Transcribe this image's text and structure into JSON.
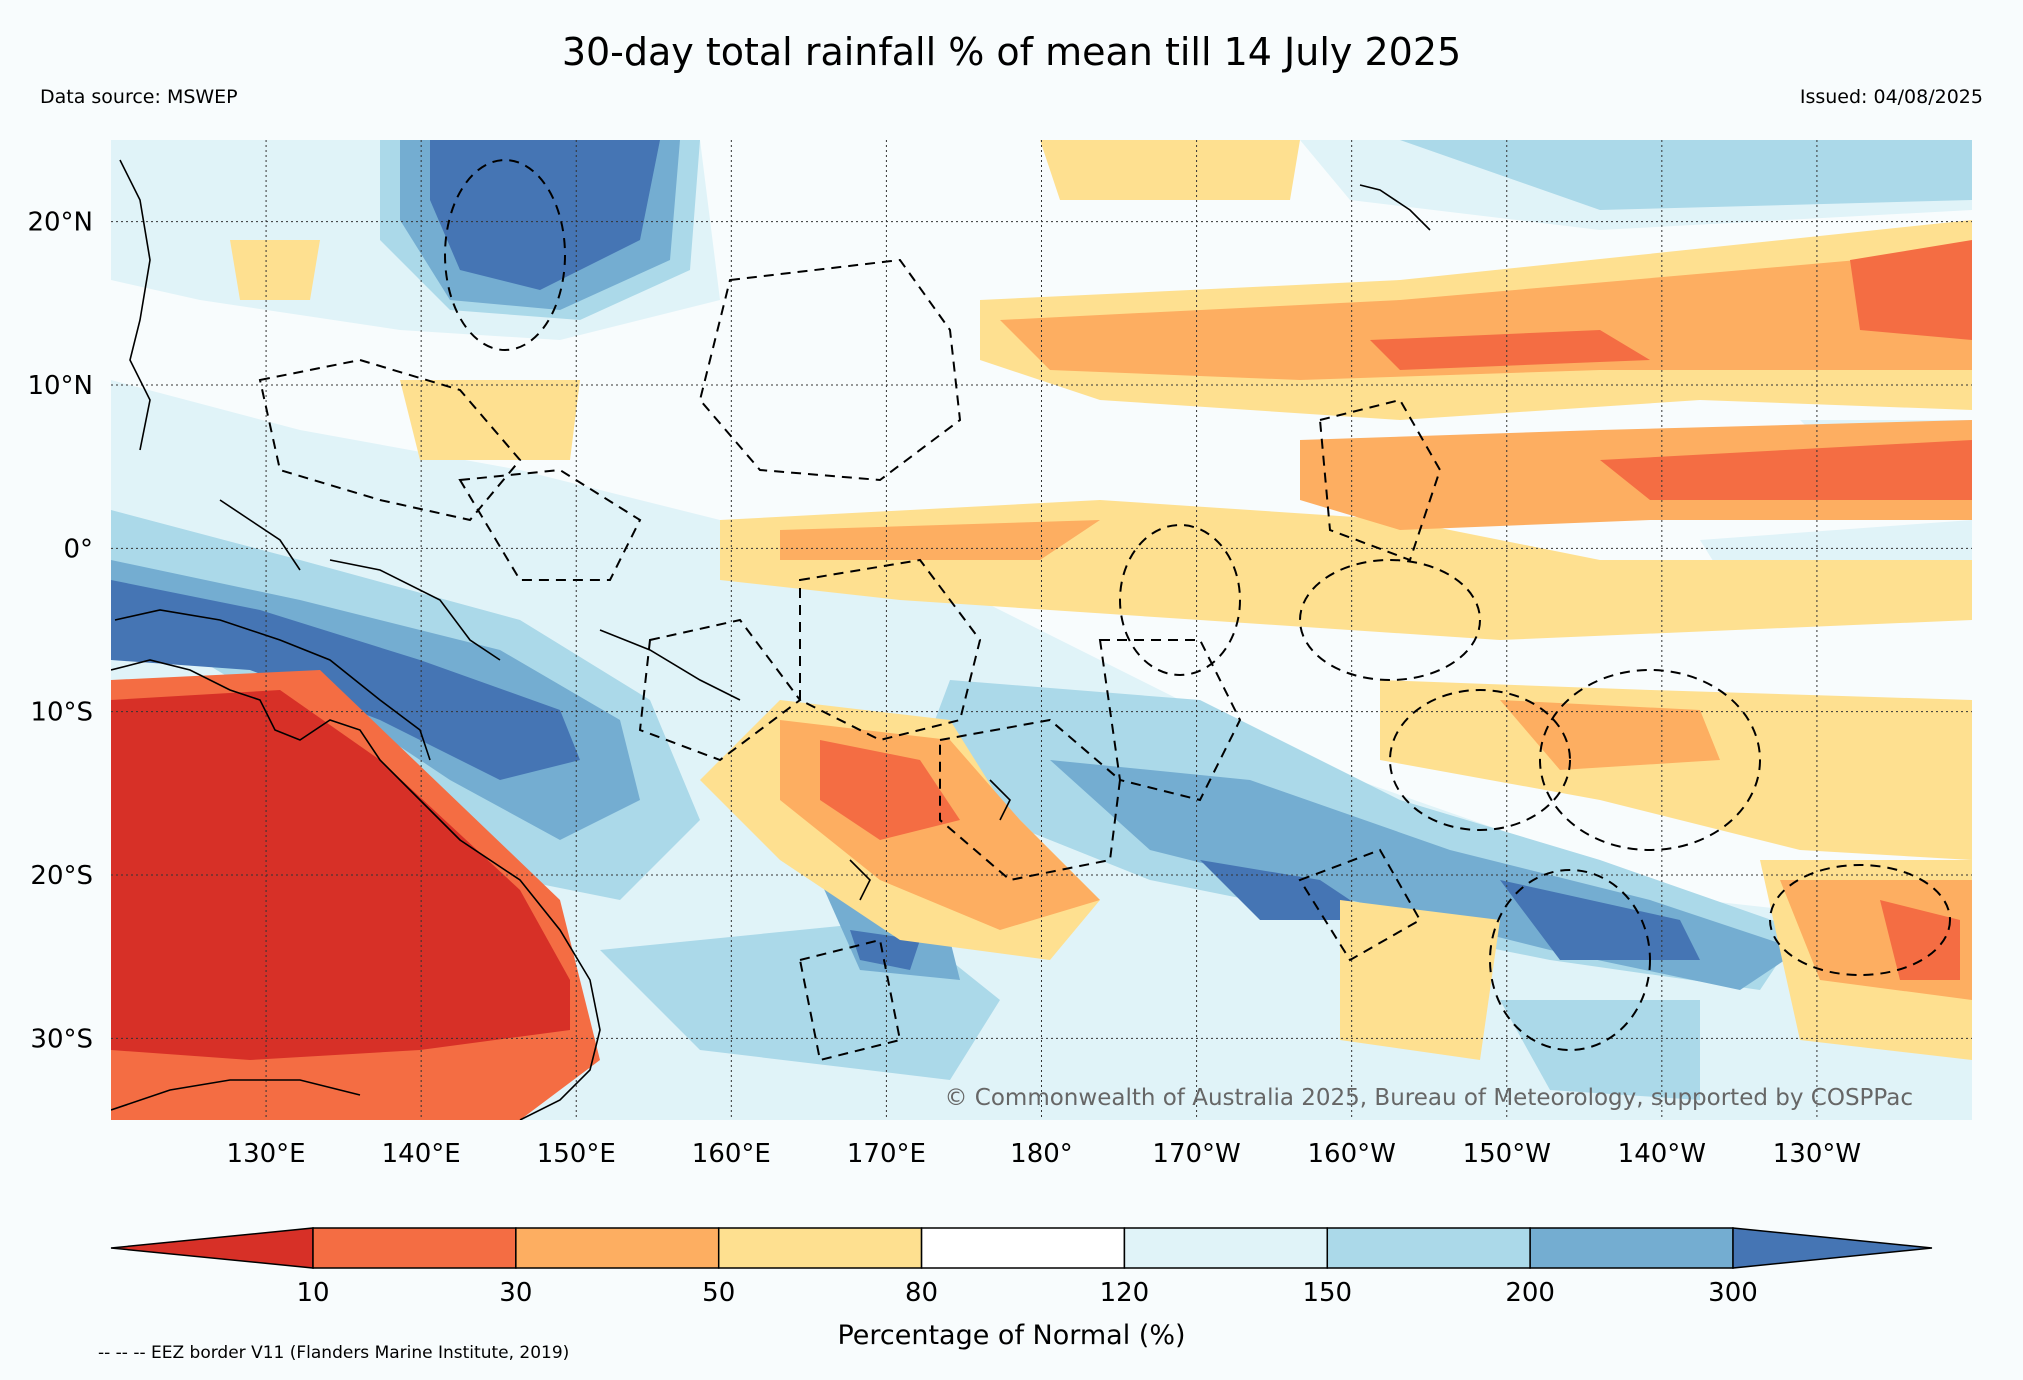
{
  "title": "30-day total rainfall % of mean till 14 July 2025",
  "data_source": "Data source: MSWEP",
  "issued": "Issued: 04/08/2025",
  "copyright": "© Commonwealth of Australia 2025, Bureau of Meteorology, supported by COSPPac",
  "footnote": "-- -- -- EEZ border V11 (Flanders Marine Institute, 2019)",
  "map": {
    "lon_range": [
      120,
      240
    ],
    "lat_range": [
      -35,
      25
    ],
    "lat_ticks": [
      {
        "value": 20,
        "label": "20°N"
      },
      {
        "value": 10,
        "label": "10°N"
      },
      {
        "value": 0,
        "label": "0°"
      },
      {
        "value": -10,
        "label": "10°S"
      },
      {
        "value": -20,
        "label": "20°S"
      },
      {
        "value": -30,
        "label": "30°S"
      }
    ],
    "lon_ticks": [
      {
        "value": 130,
        "label": "130°E"
      },
      {
        "value": 140,
        "label": "140°E"
      },
      {
        "value": 150,
        "label": "150°E"
      },
      {
        "value": 160,
        "label": "160°E"
      },
      {
        "value": 170,
        "label": "170°E"
      },
      {
        "value": 180,
        "label": "180°"
      },
      {
        "value": 190,
        "label": "170°W"
      },
      {
        "value": 200,
        "label": "160°W"
      },
      {
        "value": 210,
        "label": "150°W"
      },
      {
        "value": 220,
        "label": "140°W"
      },
      {
        "value": 230,
        "label": "130°W"
      }
    ],
    "grid": true
  },
  "colorbar": {
    "label": "Percentage of Normal (%)",
    "ticks": [
      "10",
      "30",
      "50",
      "80",
      "120",
      "150",
      "200",
      "300"
    ],
    "colors": [
      "#d73027",
      "#f46d43",
      "#fdae61",
      "#fee090",
      "#ffffff",
      "#e0f3f8",
      "#abd9e9",
      "#74add1",
      "#4575b4"
    ],
    "extend": "both"
  }
}
